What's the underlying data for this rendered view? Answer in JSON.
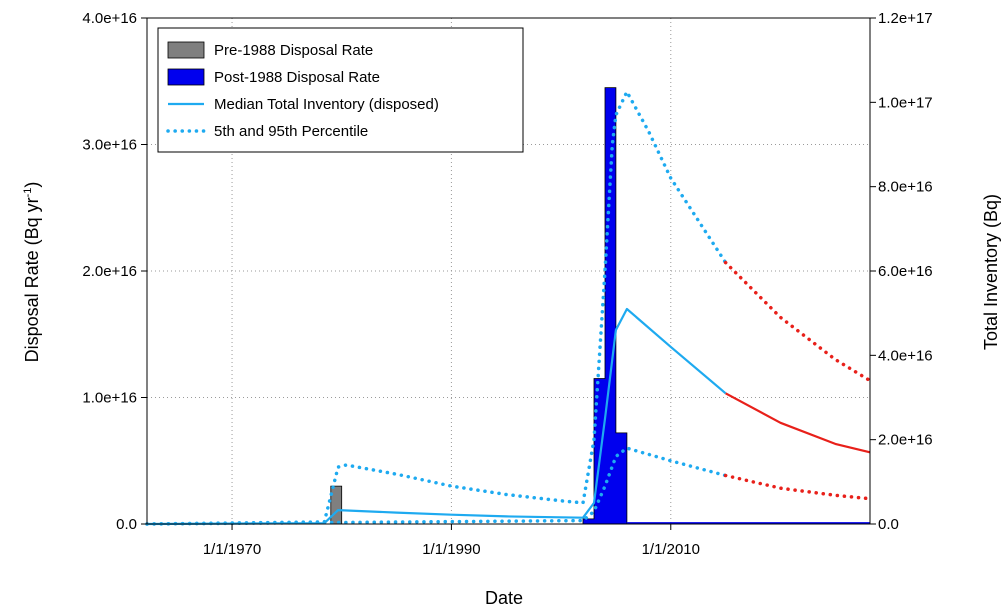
{
  "chart_data": {
    "type": "line",
    "xlabel": "Date",
    "ylabel_left": "Disposal Rate (Bq yr",
    "ylabel_left_sup": "-1",
    "ylabel_left_end": ")",
    "ylabel_right": "Total Inventory (Bq)",
    "xlim": [
      "1962-04-01",
      "2028-03-01"
    ],
    "ylim_left": [
      0,
      4e+16
    ],
    "ylim_right": [
      0,
      1.2e+17
    ],
    "x_ticks": [
      {
        "date": "1970-01-01",
        "label": "1/1/1970"
      },
      {
        "date": "1990-01-01",
        "label": "1/1/1990"
      },
      {
        "date": "2010-01-01",
        "label": "1/1/2010"
      }
    ],
    "y_left_ticks": [
      {
        "value": 0,
        "label": "0.0"
      },
      {
        "value": 1e+16,
        "label": "1.0e+16"
      },
      {
        "value": 2e+16,
        "label": "2.0e+16"
      },
      {
        "value": 3e+16,
        "label": "3.0e+16"
      },
      {
        "value": 4e+16,
        "label": "4.0e+16"
      }
    ],
    "y_right_ticks": [
      {
        "value": 0,
        "label": "0.0"
      },
      {
        "value": 2e+16,
        "label": "2.0e+16"
      },
      {
        "value": 4e+16,
        "label": "4.0e+16"
      },
      {
        "value": 6e+16,
        "label": "6.0e+16"
      },
      {
        "value": 8e+16,
        "label": "8.0e+16"
      },
      {
        "value": 1e+17,
        "label": "1.0e+17"
      },
      {
        "value": 1.2e+17,
        "label": "1.2e+17"
      }
    ],
    "grid": true,
    "legend_position": "top-left",
    "legend": [
      {
        "label": "Pre-1988 Disposal Rate",
        "kind": "box",
        "color": "#7f7f7f"
      },
      {
        "label": "Post-1988 Disposal Rate",
        "kind": "box",
        "color": "#0000ee"
      },
      {
        "label": "Median Total Inventory (disposed)",
        "kind": "line",
        "color": "#1eaaf0"
      },
      {
        "label": "5th and 95th Percentile",
        "kind": "dotted",
        "color": "#1eaaf0"
      }
    ],
    "series": [
      {
        "name": "Pre-1988 Disposal Rate",
        "axis": "left",
        "style": "bar",
        "color": "#7f7f7f",
        "points": [
          [
            "1962-04-01",
            0
          ],
          [
            "1979-01-01",
            0
          ],
          [
            "1979-01-01",
            3000000000000000.0
          ],
          [
            "1980-01-01",
            3000000000000000.0
          ],
          [
            "1980-01-01",
            0
          ],
          [
            "2028-03-01",
            0
          ]
        ]
      },
      {
        "name": "Post-1988 Disposal Rate",
        "axis": "left",
        "style": "bar",
        "color": "#0000ee",
        "points": [
          [
            "2000-01-01",
            0
          ],
          [
            "2002-01-01",
            0
          ],
          [
            "2002-01-01",
            400000000000000.0
          ],
          [
            "2003-01-01",
            400000000000000.0
          ],
          [
            "2003-01-01",
            1.15e+16
          ],
          [
            "2004-01-01",
            1.15e+16
          ],
          [
            "2004-01-01",
            3.45e+16
          ],
          [
            "2005-01-01",
            3.45e+16
          ],
          [
            "2005-01-01",
            7200000000000000.0
          ],
          [
            "2006-01-01",
            7200000000000000.0
          ],
          [
            "2006-01-01",
            0
          ],
          [
            "2028-03-01",
            0
          ]
        ]
      },
      {
        "name": "Median Total Inventory (disposed)",
        "axis": "right",
        "style": "solid",
        "color": "#1eaaf0",
        "points": [
          [
            "1962-04-01",
            0
          ],
          [
            "1978-06-01",
            200000000000000.0
          ],
          [
            "1979-09-01",
            3300000000000000.0
          ],
          [
            "1985-01-01",
            2700000000000000.0
          ],
          [
            "1990-01-01",
            2200000000000000.0
          ],
          [
            "1995-01-01",
            1800000000000000.0
          ],
          [
            "2002-01-01",
            1500000000000000.0
          ],
          [
            "2003-01-01",
            5000000000000000.0
          ],
          [
            "2004-01-01",
            2.5e+16
          ],
          [
            "2005-01-01",
            4.6e+16
          ],
          [
            "2006-01-01",
            5.1e+16
          ],
          [
            "2010-01-01",
            4.2e+16
          ],
          [
            "2015-01-01",
            3.1e+16
          ]
        ]
      },
      {
        "name": "",
        "axis": "right",
        "style": "solid",
        "color": "#e8201a",
        "points": [
          [
            "2015-01-01",
            3.1e+16
          ],
          [
            "2020-01-01",
            2.4e+16
          ],
          [
            "2025-01-01",
            1.9e+16
          ],
          [
            "2028-03-01",
            1.7e+16
          ]
        ]
      },
      {
        "name": "5th and 95th Percentile",
        "axis": "right",
        "style": "dotted",
        "color": "#1eaaf0",
        "points": [
          [
            "1962-04-01",
            0
          ],
          [
            "1978-06-01",
            500000000000000.0
          ],
          [
            "1979-09-01",
            1.35e+16
          ],
          [
            "1980-06-01",
            1.4e+16
          ],
          [
            "1985-01-01",
            1.18e+16
          ],
          [
            "1990-01-01",
            9000000000000000.0
          ],
          [
            "1995-01-01",
            7000000000000000.0
          ],
          [
            "2000-01-01",
            5500000000000000.0
          ],
          [
            "2002-01-01",
            5000000000000000.0
          ],
          [
            "2003-01-01",
            2e+16
          ],
          [
            "2004-01-01",
            6e+16
          ],
          [
            "2004-09-01",
            9e+16
          ],
          [
            "2005-01-01",
            9.7e+16
          ],
          [
            "2006-01-01",
            1.025e+17
          ],
          [
            "2008-01-01",
            9.3e+16
          ],
          [
            "2010-01-01",
            8.2e+16
          ],
          [
            "2015-01-01",
            6.2e+16
          ]
        ]
      },
      {
        "name": "",
        "axis": "right",
        "style": "dotted",
        "color": "#e8201a",
        "points": [
          [
            "2015-01-01",
            6.2e+16
          ],
          [
            "2020-01-01",
            4.9e+16
          ],
          [
            "2025-01-01",
            3.9e+16
          ],
          [
            "2028-03-01",
            3.4e+16
          ]
        ]
      },
      {
        "name": "",
        "axis": "right",
        "style": "dotted",
        "color": "#1eaaf0",
        "points": [
          [
            "1962-04-01",
            0
          ],
          [
            "2002-01-01",
            800000000000000.0
          ],
          [
            "2003-01-01",
            3000000000000000.0
          ],
          [
            "2004-01-01",
            9000000000000000.0
          ],
          [
            "2005-01-01",
            1.6e+16
          ],
          [
            "2006-01-01",
            1.8e+16
          ],
          [
            "2010-01-01",
            1.5e+16
          ],
          [
            "2015-01-01",
            1.15e+16
          ]
        ]
      },
      {
        "name": "",
        "axis": "right",
        "style": "dotted",
        "color": "#e8201a",
        "points": [
          [
            "2015-01-01",
            1.15e+16
          ],
          [
            "2020-01-01",
            8500000000000000.0
          ],
          [
            "2025-01-01",
            6800000000000000.0
          ],
          [
            "2028-03-01",
            6000000000000000.0
          ]
        ]
      },
      {
        "name": "",
        "axis": "right",
        "style": "solid",
        "color": "#0000ee",
        "points": [
          [
            "2006-01-01",
            200000000000000.0
          ],
          [
            "2028-03-01",
            200000000000000.0
          ]
        ]
      }
    ]
  }
}
